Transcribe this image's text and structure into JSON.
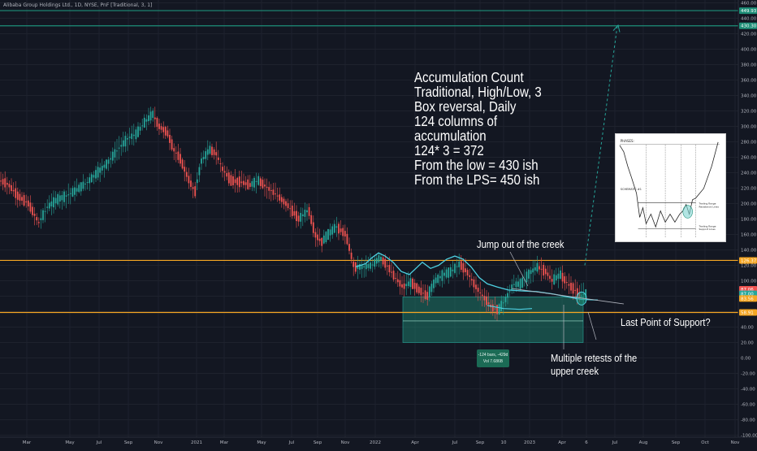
{
  "header": {
    "title": "Alibaba Group Holdings Ltd., 1D, NYSE, PnF [Traditional, 3, 1]"
  },
  "chart_data": {
    "type": "pnf",
    "y_axis": {
      "ylim": [
        -100,
        460
      ],
      "ticks": [
        "460.00",
        "440.00",
        "420.00",
        "400.00",
        "380.00",
        "360.00",
        "340.00",
        "320.00",
        "300.00",
        "280.00",
        "260.00",
        "240.00",
        "220.00",
        "200.00",
        "180.00",
        "160.00",
        "140.00",
        "120.00",
        "100.00",
        "80.00",
        "60.00",
        "40.00",
        "20.00",
        "0.00",
        "-20.00",
        "-40.00",
        "-60.00",
        "-80.00",
        "-100.00"
      ]
    },
    "x_axis": {
      "ticks": [
        "Mar",
        "May",
        "Jul",
        "Sep",
        "Nov",
        "2021",
        "Mar",
        "May",
        "Jul",
        "Sep",
        "Nov",
        "2022",
        "Apr",
        "Jul",
        "Sep",
        "10",
        "2023",
        "Apr",
        "6",
        "Jul",
        "Aug",
        "Sep",
        "Oct",
        "Nov"
      ]
    },
    "price_labels": {
      "top_line": "449.93",
      "second_line": "430.30",
      "creek": "126.37",
      "last": "87.06",
      "last2": "87.00",
      "current": "83.56",
      "support": "58.91"
    },
    "horizontal_levels": [
      {
        "value": 449.93,
        "color": "#1e8f78"
      },
      {
        "value": 430.3,
        "color": "#1e8f78"
      },
      {
        "value": 126.37,
        "color": "#f5a623"
      },
      {
        "value": 58.91,
        "color": "#f5a623"
      }
    ],
    "price_path": [
      [
        0,
        230
      ],
      [
        10,
        225
      ],
      [
        22,
        210
      ],
      [
        35,
        200
      ],
      [
        48,
        175
      ],
      [
        58,
        195
      ],
      [
        70,
        205
      ],
      [
        82,
        210
      ],
      [
        95,
        218
      ],
      [
        108,
        228
      ],
      [
        120,
        240
      ],
      [
        132,
        252
      ],
      [
        145,
        270
      ],
      [
        158,
        285
      ],
      [
        168,
        290
      ],
      [
        178,
        305
      ],
      [
        188,
        316
      ],
      [
        196,
        300
      ],
      [
        206,
        292
      ],
      [
        214,
        270
      ],
      [
        222,
        258
      ],
      [
        232,
        232
      ],
      [
        240,
        215
      ],
      [
        248,
        255
      ],
      [
        258,
        270
      ],
      [
        266,
        265
      ],
      [
        274,
        245
      ],
      [
        284,
        230
      ],
      [
        296,
        228
      ],
      [
        308,
        224
      ],
      [
        318,
        230
      ],
      [
        330,
        220
      ],
      [
        342,
        210
      ],
      [
        354,
        198
      ],
      [
        368,
        180
      ],
      [
        380,
        192
      ],
      [
        388,
        160
      ],
      [
        396,
        150
      ],
      [
        404,
        160
      ],
      [
        414,
        170
      ],
      [
        426,
        160
      ],
      [
        436,
        118
      ],
      [
        448,
        118
      ],
      [
        458,
        120
      ],
      [
        468,
        130
      ],
      [
        478,
        118
      ],
      [
        486,
        105
      ],
      [
        496,
        92
      ],
      [
        506,
        98
      ],
      [
        516,
        88
      ],
      [
        526,
        80
      ],
      [
        536,
        100
      ],
      [
        546,
        108
      ],
      [
        556,
        112
      ],
      [
        566,
        122
      ],
      [
        576,
        110
      ],
      [
        586,
        92
      ],
      [
        596,
        78
      ],
      [
        606,
        65
      ],
      [
        614,
        62
      ],
      [
        622,
        75
      ],
      [
        632,
        95
      ],
      [
        642,
        96
      ],
      [
        652,
        110
      ],
      [
        662,
        118
      ],
      [
        672,
        112
      ],
      [
        680,
        100
      ],
      [
        690,
        108
      ],
      [
        700,
        95
      ],
      [
        708,
        88
      ],
      [
        714,
        80
      ],
      [
        720,
        83
      ]
    ],
    "accumulation_box": {
      "top": 79,
      "bottom": 20,
      "color": "#1e8f78"
    },
    "range_box": {
      "line1": "-124 bars, -429d",
      "line2": "Vol 7.686B"
    },
    "projection_target": 430,
    "annotations": {
      "count_note": [
        "Accumulation Count",
        "Traditional, High/Low, 3",
        "Box reversal, Daily",
        "124 columns of",
        "accumulation",
        "124* 3 = 372",
        "From the low = 430 ish",
        "From the LPS= 450 ish"
      ],
      "jump": "Jump out of the creek",
      "lps": "Last Point of Support?",
      "retests_1": "Multiple retests of the",
      "retests_2": "upper creek"
    },
    "inset": {
      "phases_label": "PHASES:",
      "schematic_label": "SCHEMATIC #1",
      "legend": [
        "Trading Range",
        "Resistance Lines",
        "Trading Range",
        "Support Lines"
      ]
    },
    "colors": {
      "background": "#131722",
      "up": "#26a69a",
      "down": "#ef5350",
      "creek_curve": "#4dd0e1",
      "level_orange": "#f5a623",
      "level_teal": "#1e8f78"
    }
  }
}
